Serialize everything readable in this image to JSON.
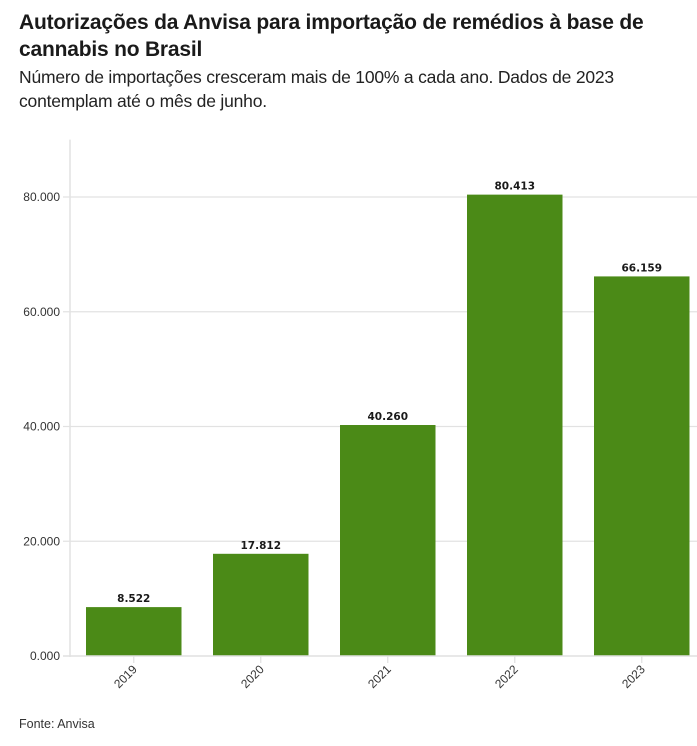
{
  "header": {
    "title": "Autorizações da Anvisa para importação de remédios à base de cannabis no Brasil",
    "subtitle": "Número de importações cresceram mais de 100% a cada ano. Dados de 2023 contemplam até o mês de junho."
  },
  "footer": {
    "source": "Fonte: Anvisa"
  },
  "colors": {
    "bar": "#4b8a17",
    "grid": "#e2e2e2"
  },
  "chart_data": {
    "type": "bar",
    "title": "Autorizações da Anvisa para importação de remédios à base de cannabis no Brasil",
    "subtitle": "Número de importações cresceram mais de 100% a cada ano. Dados de 2023 contemplam até o mês de junho.",
    "categories": [
      "2019",
      "2020",
      "2021",
      "2022",
      "2023"
    ],
    "values": [
      8522,
      17812,
      40260,
      80413,
      66159
    ],
    "data_labels": [
      "8.522",
      "17.812",
      "40.260",
      "80.413",
      "66.159"
    ],
    "xlabel": "",
    "ylabel": "",
    "ylim": [
      0,
      90000
    ],
    "yticks": [
      0,
      20000,
      40000,
      60000,
      80000
    ],
    "ytick_labels": [
      "0.000",
      "20.000",
      "40.000",
      "60.000",
      "80.000"
    ],
    "grid": true,
    "legend": "none"
  }
}
